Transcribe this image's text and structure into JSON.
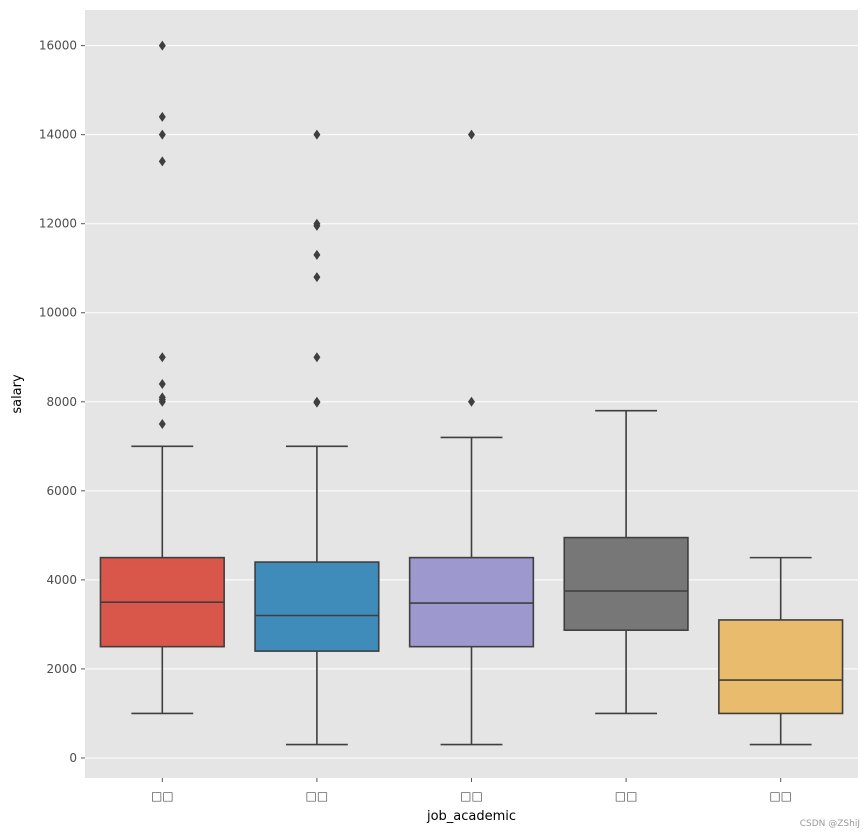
{
  "chart_data": {
    "type": "box",
    "title": "",
    "xlabel": "job_academic",
    "ylabel": "salary",
    "ylim": [
      -450,
      16800
    ],
    "yticks": [
      0,
      2000,
      4000,
      6000,
      8000,
      10000,
      12000,
      14000,
      16000
    ],
    "grid": true,
    "categories": [
      "□□",
      "□□",
      "□□",
      "□□",
      "□□"
    ],
    "boxes": [
      {
        "category": "□□",
        "color": "#d9574a",
        "whisker_low": 1000,
        "q1": 2500,
        "median": 3500,
        "q3": 4500,
        "whisker_high": 7000,
        "outliers": [
          16000,
          14400,
          14000,
          13400,
          9000,
          8400,
          8100,
          8050,
          8000,
          7500
        ]
      },
      {
        "category": "□□",
        "color": "#3f8bba",
        "whisker_low": 300,
        "q1": 2400,
        "median": 3200,
        "q3": 4400,
        "whisker_high": 7000,
        "outliers": [
          14000,
          12000,
          11950,
          11300,
          10800,
          9000,
          8000,
          7980
        ]
      },
      {
        "category": "□□",
        "color": "#9d98cd",
        "whisker_low": 300,
        "q1": 2500,
        "median": 3480,
        "q3": 4500,
        "whisker_high": 7200,
        "outliers": [
          14000,
          8000
        ]
      },
      {
        "category": "□□",
        "color": "#777777",
        "whisker_low": 1000,
        "q1": 2870,
        "median": 3750,
        "q3": 4950,
        "whisker_high": 7800,
        "outliers": []
      },
      {
        "category": "□□",
        "color": "#e9bb6c",
        "whisker_low": 300,
        "q1": 1000,
        "median": 1750,
        "q3": 3100,
        "whisker_high": 4500,
        "outliers": []
      }
    ],
    "colors": {
      "background": "#e5e5e5",
      "grid": "#ffffff",
      "line": "#3f3f3f",
      "tick_text": "#4d4d4d"
    }
  },
  "watermark": "CSDN @ZShiJ"
}
